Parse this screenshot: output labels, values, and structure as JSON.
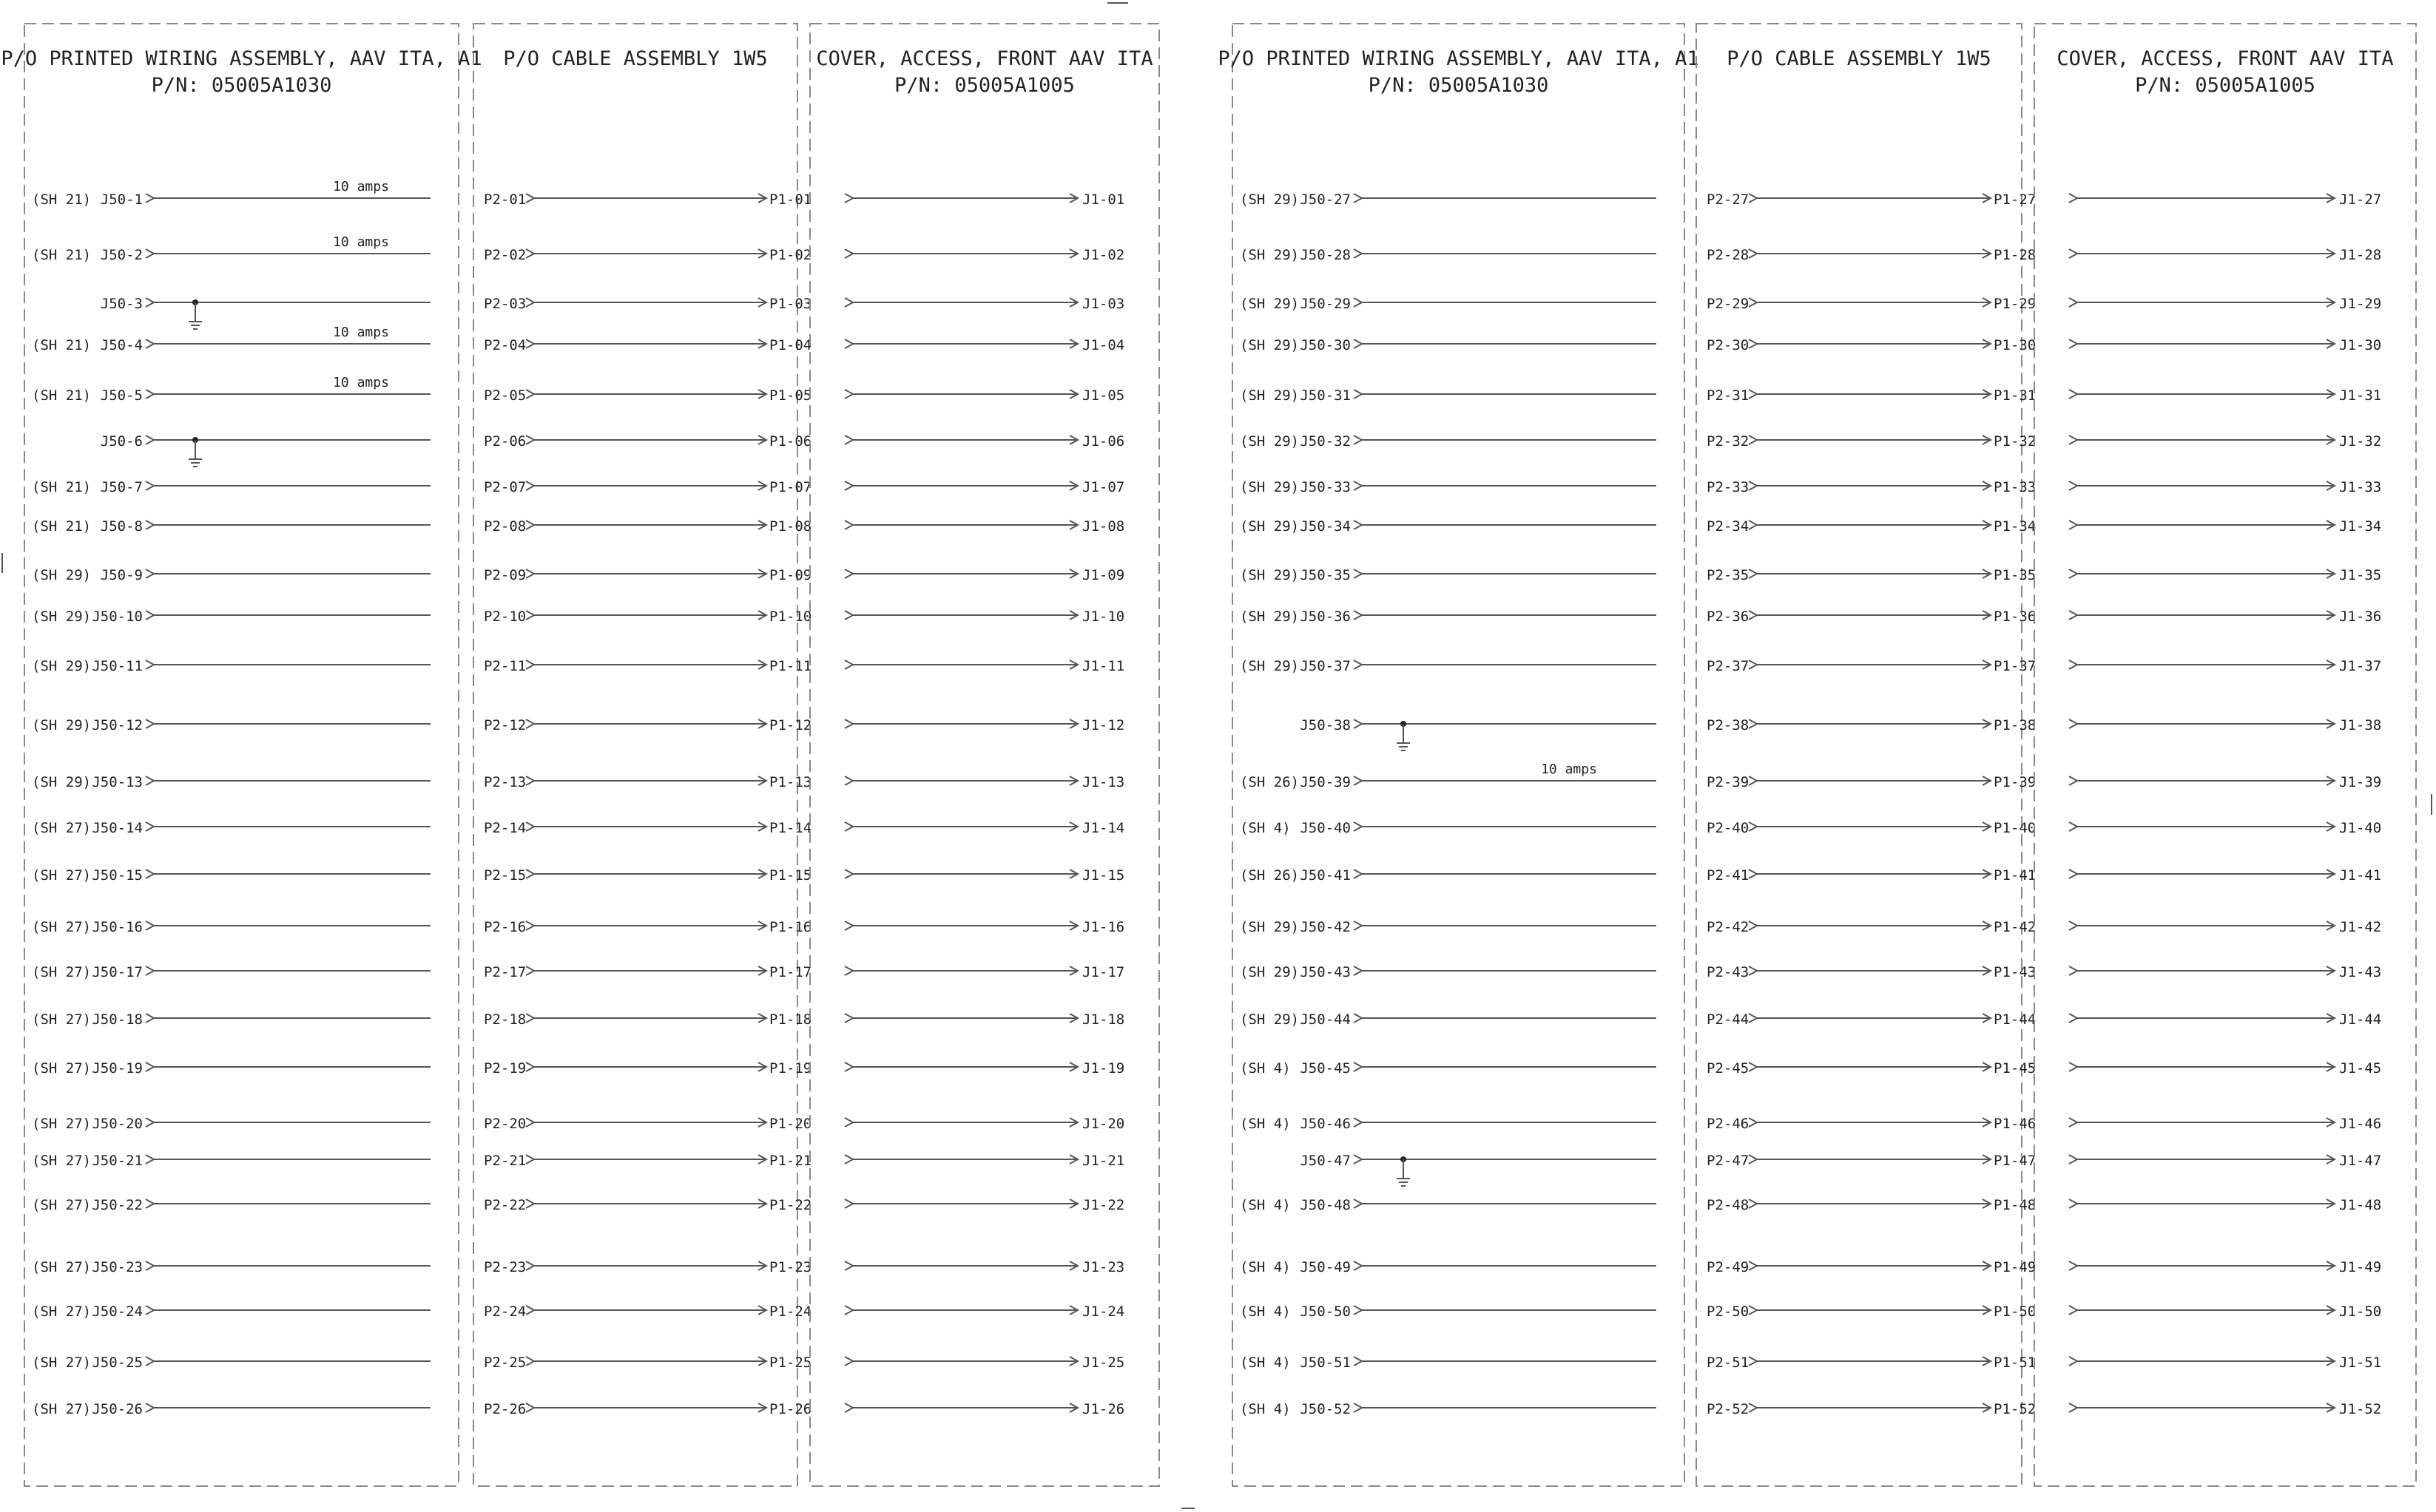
{
  "colors": {
    "ink": "#222222",
    "line": "#555555",
    "border": "#8a8a8a"
  },
  "panels": [
    {
      "kind": "pwa",
      "title": [
        "P/O PRINTED WIRING ASSEMBLY, AAV ITA, A1",
        "P/N: 05005A1030"
      ],
      "rows": [
        {
          "ref": "(SH 21)",
          "pin": "J50-1",
          "note": "10 amps"
        },
        {
          "ref": "(SH 21)",
          "pin": "J50-2",
          "note": "10 amps"
        },
        {
          "ref": "",
          "pin": "J50-3",
          "ground": true
        },
        {
          "ref": "(SH 21)",
          "pin": "J50-4",
          "note": "10 amps"
        },
        {
          "ref": "(SH 21)",
          "pin": "J50-5",
          "note": "10 amps"
        },
        {
          "ref": "",
          "pin": "J50-6",
          "ground": true
        },
        {
          "ref": "(SH 21)",
          "pin": "J50-7"
        },
        {
          "ref": "(SH 21)",
          "pin": "J50-8"
        },
        {
          "ref": "(SH 29)",
          "pin": "J50-9"
        },
        {
          "ref": "(SH 29)",
          "pin": "J50-10"
        },
        {
          "ref": "(SH 29)",
          "pin": "J50-11"
        },
        {
          "ref": "(SH 29)",
          "pin": "J50-12"
        },
        {
          "ref": "(SH 29)",
          "pin": "J50-13"
        },
        {
          "ref": "(SH 27)",
          "pin": "J50-14"
        },
        {
          "ref": "(SH 27)",
          "pin": "J50-15"
        },
        {
          "ref": "(SH 27)",
          "pin": "J50-16"
        },
        {
          "ref": "(SH 27)",
          "pin": "J50-17"
        },
        {
          "ref": "(SH 27)",
          "pin": "J50-18"
        },
        {
          "ref": "(SH 27)",
          "pin": "J50-19"
        },
        {
          "ref": "(SH 27)",
          "pin": "J50-20"
        },
        {
          "ref": "(SH 27)",
          "pin": "J50-21"
        },
        {
          "ref": "(SH 27)",
          "pin": "J50-22"
        },
        {
          "ref": "(SH 27)",
          "pin": "J50-23"
        },
        {
          "ref": "(SH 27)",
          "pin": "J50-24"
        },
        {
          "ref": "(SH 27)",
          "pin": "J50-25"
        },
        {
          "ref": "(SH 27)",
          "pin": "J50-26"
        }
      ]
    },
    {
      "kind": "cable",
      "title": [
        "P/O CABLE ASSEMBLY 1W5"
      ],
      "rows": [
        {
          "from": "P2-01",
          "to": "P1-01"
        },
        {
          "from": "P2-02",
          "to": "P1-02"
        },
        {
          "from": "P2-03",
          "to": "P1-03"
        },
        {
          "from": "P2-04",
          "to": "P1-04"
        },
        {
          "from": "P2-05",
          "to": "P1-05"
        },
        {
          "from": "P2-06",
          "to": "P1-06"
        },
        {
          "from": "P2-07",
          "to": "P1-07"
        },
        {
          "from": "P2-08",
          "to": "P1-08"
        },
        {
          "from": "P2-09",
          "to": "P1-09"
        },
        {
          "from": "P2-10",
          "to": "P1-10"
        },
        {
          "from": "P2-11",
          "to": "P1-11"
        },
        {
          "from": "P2-12",
          "to": "P1-12"
        },
        {
          "from": "P2-13",
          "to": "P1-13"
        },
        {
          "from": "P2-14",
          "to": "P1-14"
        },
        {
          "from": "P2-15",
          "to": "P1-15"
        },
        {
          "from": "P2-16",
          "to": "P1-16"
        },
        {
          "from": "P2-17",
          "to": "P1-17"
        },
        {
          "from": "P2-18",
          "to": "P1-18"
        },
        {
          "from": "P2-19",
          "to": "P1-19"
        },
        {
          "from": "P2-20",
          "to": "P1-20"
        },
        {
          "from": "P2-21",
          "to": "P1-21"
        },
        {
          "from": "P2-22",
          "to": "P1-22"
        },
        {
          "from": "P2-23",
          "to": "P1-23"
        },
        {
          "from": "P2-24",
          "to": "P1-24"
        },
        {
          "from": "P2-25",
          "to": "P1-25"
        },
        {
          "from": "P2-26",
          "to": "P1-26"
        }
      ]
    },
    {
      "kind": "cover",
      "title": [
        "COVER, ACCESS, FRONT AAV ITA",
        "P/N: 05005A1005"
      ],
      "rows": [
        {
          "to": "J1-01"
        },
        {
          "to": "J1-02"
        },
        {
          "to": "J1-03"
        },
        {
          "to": "J1-04"
        },
        {
          "to": "J1-05"
        },
        {
          "to": "J1-06"
        },
        {
          "to": "J1-07"
        },
        {
          "to": "J1-08"
        },
        {
          "to": "J1-09"
        },
        {
          "to": "J1-10"
        },
        {
          "to": "J1-11"
        },
        {
          "to": "J1-12"
        },
        {
          "to": "J1-13"
        },
        {
          "to": "J1-14"
        },
        {
          "to": "J1-15"
        },
        {
          "to": "J1-16"
        },
        {
          "to": "J1-17"
        },
        {
          "to": "J1-18"
        },
        {
          "to": "J1-19"
        },
        {
          "to": "J1-20"
        },
        {
          "to": "J1-21"
        },
        {
          "to": "J1-22"
        },
        {
          "to": "J1-23"
        },
        {
          "to": "J1-24"
        },
        {
          "to": "J1-25"
        },
        {
          "to": "J1-26"
        }
      ]
    },
    {
      "kind": "pwa",
      "title": [
        "P/O PRINTED WIRING ASSEMBLY, AAV ITA, A1",
        "P/N: 05005A1030"
      ],
      "rows": [
        {
          "ref": "(SH 29)",
          "pin": "J50-27"
        },
        {
          "ref": "(SH 29)",
          "pin": "J50-28"
        },
        {
          "ref": "(SH 29)",
          "pin": "J50-29"
        },
        {
          "ref": "(SH 29)",
          "pin": "J50-30"
        },
        {
          "ref": "(SH 29)",
          "pin": "J50-31"
        },
        {
          "ref": "(SH 29)",
          "pin": "J50-32"
        },
        {
          "ref": "(SH 29)",
          "pin": "J50-33"
        },
        {
          "ref": "(SH 29)",
          "pin": "J50-34"
        },
        {
          "ref": "(SH 29)",
          "pin": "J50-35"
        },
        {
          "ref": "(SH 29)",
          "pin": "J50-36"
        },
        {
          "ref": "(SH 29)",
          "pin": "J50-37"
        },
        {
          "ref": "",
          "pin": "J50-38",
          "ground": true
        },
        {
          "ref": "(SH 26)",
          "pin": "J50-39",
          "note": "10 amps"
        },
        {
          "ref": "(SH 4)",
          "pin": "J50-40"
        },
        {
          "ref": "(SH 26)",
          "pin": "J50-41"
        },
        {
          "ref": "(SH 29)",
          "pin": "J50-42"
        },
        {
          "ref": "(SH 29)",
          "pin": "J50-43"
        },
        {
          "ref": "(SH 29)",
          "pin": "J50-44"
        },
        {
          "ref": "(SH 4)",
          "pin": "J50-45"
        },
        {
          "ref": "(SH 4)",
          "pin": "J50-46"
        },
        {
          "ref": "",
          "pin": "J50-47",
          "ground": true
        },
        {
          "ref": "(SH 4)",
          "pin": "J50-48"
        },
        {
          "ref": "(SH 4)",
          "pin": "J50-49"
        },
        {
          "ref": "(SH 4)",
          "pin": "J50-50"
        },
        {
          "ref": "(SH 4)",
          "pin": "J50-51"
        },
        {
          "ref": "(SH 4)",
          "pin": "J50-52"
        }
      ]
    },
    {
      "kind": "cable",
      "title": [
        "P/O CABLE ASSEMBLY 1W5"
      ],
      "rows": [
        {
          "from": "P2-27",
          "to": "P1-27"
        },
        {
          "from": "P2-28",
          "to": "P1-28"
        },
        {
          "from": "P2-29",
          "to": "P1-29"
        },
        {
          "from": "P2-30",
          "to": "P1-30"
        },
        {
          "from": "P2-31",
          "to": "P1-31"
        },
        {
          "from": "P2-32",
          "to": "P1-32"
        },
        {
          "from": "P2-33",
          "to": "P1-33"
        },
        {
          "from": "P2-34",
          "to": "P1-34"
        },
        {
          "from": "P2-35",
          "to": "P1-35"
        },
        {
          "from": "P2-36",
          "to": "P1-36"
        },
        {
          "from": "P2-37",
          "to": "P1-37"
        },
        {
          "from": "P2-38",
          "to": "P1-38"
        },
        {
          "from": "P2-39",
          "to": "P1-39"
        },
        {
          "from": "P2-40",
          "to": "P1-40"
        },
        {
          "from": "P2-41",
          "to": "P1-41"
        },
        {
          "from": "P2-42",
          "to": "P1-42"
        },
        {
          "from": "P2-43",
          "to": "P1-43"
        },
        {
          "from": "P2-44",
          "to": "P1-44"
        },
        {
          "from": "P2-45",
          "to": "P1-45"
        },
        {
          "from": "P2-46",
          "to": "P1-46"
        },
        {
          "from": "P2-47",
          "to": "P1-47"
        },
        {
          "from": "P2-48",
          "to": "P1-48"
        },
        {
          "from": "P2-49",
          "to": "P1-49"
        },
        {
          "from": "P2-50",
          "to": "P1-50"
        },
        {
          "from": "P2-51",
          "to": "P1-51"
        },
        {
          "from": "P2-52",
          "to": "P1-52"
        }
      ]
    },
    {
      "kind": "cover",
      "title": [
        "COVER, ACCESS, FRONT AAV ITA",
        "P/N: 05005A1005"
      ],
      "rows": [
        {
          "to": "J1-27"
        },
        {
          "to": "J1-28"
        },
        {
          "to": "J1-29"
        },
        {
          "to": "J1-30"
        },
        {
          "to": "J1-31"
        },
        {
          "to": "J1-32"
        },
        {
          "to": "J1-33"
        },
        {
          "to": "J1-34"
        },
        {
          "to": "J1-35"
        },
        {
          "to": "J1-36"
        },
        {
          "to": "J1-37"
        },
        {
          "to": "J1-38"
        },
        {
          "to": "J1-39"
        },
        {
          "to": "J1-40"
        },
        {
          "to": "J1-41"
        },
        {
          "to": "J1-42"
        },
        {
          "to": "J1-43"
        },
        {
          "to": "J1-44"
        },
        {
          "to": "J1-45"
        },
        {
          "to": "J1-46"
        },
        {
          "to": "J1-47"
        },
        {
          "to": "J1-48"
        },
        {
          "to": "J1-49"
        },
        {
          "to": "J1-50"
        },
        {
          "to": "J1-51"
        },
        {
          "to": "J1-52"
        }
      ]
    }
  ]
}
